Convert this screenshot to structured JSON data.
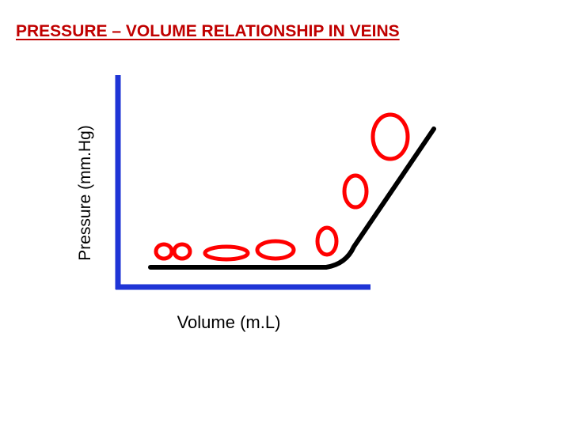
{
  "title": "PRESSURE – VOLUME RELATIONSHIP IN VEINS",
  "y_axis_label": "Pressure (mm.Hg)",
  "x_axis_label": "Volume (m.L)",
  "colors": {
    "title": "#c00000",
    "axes": "#1f35d6",
    "curve": "#000000",
    "vein_shapes": "#ff0000"
  },
  "vein_shapes": [
    "collapsed-figure-eight",
    "flattened-ellipse",
    "oval",
    "upright-oval",
    "upright-oval",
    "round-distended"
  ]
}
